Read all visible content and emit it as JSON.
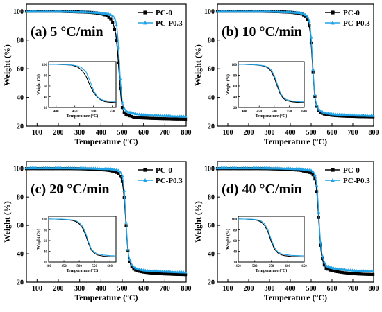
{
  "figure": {
    "legend": {
      "series0": "PC-0",
      "series1": "PC-P0.3"
    },
    "colors": {
      "series0": "#000000",
      "series1": "#1fa3e6"
    }
  },
  "chart_data": [
    {
      "type": "line",
      "title": "(a) 5 °C/min",
      "xlabel": "Temperature (°C)",
      "ylabel": "Weight (%)",
      "xlim": [
        50,
        800
      ],
      "ylim": [
        20,
        105
      ],
      "xticks": [
        100,
        200,
        300,
        400,
        500,
        600,
        700,
        800
      ],
      "yticks": [
        20,
        40,
        60,
        80,
        100
      ],
      "legend_position": "top-right",
      "series": [
        {
          "name": "PC-0",
          "color": "#000000",
          "marker": "square",
          "x": [
            50,
            100,
            150,
            200,
            250,
            300,
            350,
            400,
            430,
            450,
            460,
            470,
            475,
            480,
            485,
            490,
            495,
            500,
            510,
            520,
            540,
            560,
            600,
            650,
            700,
            750,
            800
          ],
          "y": [
            100,
            100,
            100,
            100,
            99.8,
            99.6,
            99.3,
            98.5,
            97,
            94,
            90,
            84,
            77,
            68,
            58,
            48,
            39,
            33,
            29,
            28,
            27,
            26,
            25.7,
            25.4,
            25.2,
            25,
            24.9
          ]
        },
        {
          "name": "PC-P0.3",
          "color": "#1fa3e6",
          "marker": "triangle",
          "x": [
            50,
            100,
            150,
            200,
            250,
            300,
            350,
            400,
            430,
            450,
            460,
            470,
            475,
            480,
            485,
            490,
            495,
            500,
            510,
            520,
            540,
            560,
            600,
            650,
            700,
            750,
            800
          ],
          "y": [
            100,
            100,
            100,
            100,
            99.9,
            99.7,
            99.5,
            99,
            98.3,
            97.5,
            96.5,
            93,
            89,
            80,
            68,
            55,
            44,
            37,
            32,
            30.5,
            29.5,
            28.7,
            28,
            27.6,
            27.3,
            27,
            26.8
          ]
        }
      ],
      "inset": {
        "xlabel": "Temperature (°C)",
        "ylabel": "Weight (%)",
        "xlim": [
          380,
          560
        ],
        "ylim": [
          20,
          105
        ],
        "xticks": [
          400,
          450,
          500,
          550
        ],
        "yticks": [
          20,
          40,
          60,
          80,
          100
        ],
        "series": [
          {
            "name": "PC-0",
            "x": [
              380,
              400,
              420,
              440,
              450,
              460,
              470,
              480,
              490,
              500,
              510,
              520,
              530,
              540,
              550,
              560
            ],
            "y": [
              100,
              99.8,
              99.4,
              98.5,
              97,
              94,
              88,
              78,
              62,
              48,
              39,
              34,
              31,
              30,
              29.5,
              29
            ]
          },
          {
            "name": "PC-P0.3",
            "x": [
              380,
              400,
              420,
              440,
              450,
              460,
              470,
              480,
              490,
              500,
              510,
              520,
              530,
              540,
              550,
              560
            ],
            "y": [
              100,
              99.9,
              99.6,
              99,
              98,
              96.5,
              93,
              86,
              70,
              52,
              40,
              35,
              33,
              32,
              31.5,
              31
            ]
          }
        ]
      }
    },
    {
      "type": "line",
      "title": "(b) 10 °C/min",
      "xlabel": "Temperature (°C)",
      "ylabel": "Weight (%)",
      "xlim": [
        50,
        800
      ],
      "ylim": [
        20,
        105
      ],
      "xticks": [
        100,
        200,
        300,
        400,
        500,
        600,
        700,
        800
      ],
      "yticks": [
        20,
        40,
        60,
        80,
        100
      ],
      "legend_position": "top-right",
      "series": [
        {
          "name": "PC-0",
          "color": "#000000",
          "marker": "square",
          "x": [
            50,
            100,
            150,
            200,
            250,
            300,
            350,
            400,
            450,
            470,
            480,
            490,
            495,
            500,
            505,
            510,
            515,
            520,
            530,
            540,
            560,
            600,
            650,
            700,
            750,
            800
          ],
          "y": [
            100,
            100,
            100,
            100,
            100,
            99.9,
            99.7,
            99.4,
            98.5,
            97,
            95,
            91,
            86,
            78,
            67,
            55,
            45,
            38,
            32,
            30,
            28.5,
            27.5,
            27,
            26.8,
            26.6,
            26.5
          ]
        },
        {
          "name": "PC-P0.3",
          "color": "#1fa3e6",
          "marker": "triangle",
          "x": [
            50,
            100,
            150,
            200,
            250,
            300,
            350,
            400,
            450,
            470,
            480,
            490,
            495,
            500,
            505,
            510,
            515,
            520,
            530,
            540,
            560,
            600,
            650,
            700,
            750,
            800
          ],
          "y": [
            100,
            100,
            100,
            100,
            100,
            100,
            99.8,
            99.6,
            99,
            98,
            96.8,
            94,
            90,
            82,
            70,
            57,
            46,
            39,
            33,
            31,
            29.5,
            28.5,
            28,
            27.7,
            27.5,
            27.3
          ]
        }
      ],
      "inset": {
        "xlabel": "Temperature (°C)",
        "ylabel": "Weight (%)",
        "xlim": [
          380,
          600
        ],
        "ylim": [
          20,
          105
        ],
        "xticks": [
          400,
          450,
          500,
          550,
          600
        ],
        "yticks": [
          20,
          40,
          60,
          80,
          100
        ],
        "series": [
          {
            "name": "PC-0",
            "x": [
              380,
              400,
              420,
              440,
              460,
              470,
              480,
              490,
              500,
              510,
              520,
              530,
              540,
              560,
              580,
              600
            ],
            "y": [
              100,
              99.8,
              99.5,
              99,
              97.5,
              96,
              93,
              87,
              76,
              60,
              45,
              37,
              33,
              30.5,
              29.5,
              29
            ]
          },
          {
            "name": "PC-P0.3",
            "x": [
              380,
              400,
              420,
              440,
              460,
              470,
              480,
              490,
              500,
              510,
              520,
              530,
              540,
              560,
              580,
              600
            ],
            "y": [
              100,
              99.9,
              99.6,
              99.1,
              98,
              97,
              94.5,
              90,
              80,
              64,
              48,
              39,
              35,
              32,
              31,
              30.5
            ]
          }
        ]
      }
    },
    {
      "type": "line",
      "title": "(c) 20 °C/min",
      "xlabel": "Temperature (°C)",
      "ylabel": "Weight (%)",
      "xlim": [
        50,
        800
      ],
      "ylim": [
        20,
        105
      ],
      "xticks": [
        100,
        200,
        300,
        400,
        500,
        600,
        700,
        800
      ],
      "yticks": [
        20,
        40,
        60,
        80,
        100
      ],
      "legend_position": "top-right",
      "series": [
        {
          "name": "PC-0",
          "color": "#000000",
          "marker": "square",
          "x": [
            50,
            100,
            150,
            200,
            250,
            300,
            350,
            400,
            450,
            480,
            490,
            500,
            505,
            510,
            515,
            520,
            525,
            530,
            540,
            550,
            570,
            600,
            650,
            700,
            750,
            800
          ],
          "y": [
            100,
            100,
            100,
            100,
            100,
            99.9,
            99.7,
            99.4,
            98.5,
            97,
            95,
            91,
            86,
            78,
            67,
            55,
            45,
            38,
            32,
            29.5,
            28,
            27,
            26.2,
            25.8,
            25.5,
            25.3
          ]
        },
        {
          "name": "PC-P0.3",
          "color": "#1fa3e6",
          "marker": "triangle",
          "x": [
            50,
            100,
            150,
            200,
            250,
            300,
            350,
            400,
            450,
            480,
            490,
            500,
            505,
            510,
            515,
            520,
            525,
            530,
            540,
            550,
            570,
            600,
            650,
            700,
            750,
            800
          ],
          "y": [
            100.5,
            100.5,
            100.5,
            100.5,
            100.5,
            100.4,
            100.3,
            100.1,
            99.8,
            99,
            97.8,
            95,
            91,
            83,
            70,
            57,
            46,
            39,
            33.5,
            31,
            29.5,
            28.5,
            28,
            27.6,
            27.3,
            27
          ]
        }
      ],
      "inset": {
        "xlabel": "Temperature (°C)",
        "ylabel": "Weight (%)",
        "xlim": [
          400,
          620
        ],
        "ylim": [
          20,
          105
        ],
        "xticks": [
          400,
          450,
          500,
          550,
          600
        ],
        "yticks": [
          20,
          40,
          60,
          80,
          100
        ],
        "series": [
          {
            "name": "PC-0",
            "x": [
              400,
              420,
              440,
              460,
              480,
              490,
              500,
              510,
              520,
              530,
              540,
              550,
              560,
              580,
              600,
              620
            ],
            "y": [
              100,
              99.8,
              99.4,
              98.7,
              97,
              95,
              91,
              84,
              72,
              55,
              42,
              36,
              33,
              31,
              30,
              29.5
            ]
          },
          {
            "name": "PC-P0.3",
            "x": [
              400,
              420,
              440,
              460,
              480,
              490,
              500,
              510,
              520,
              530,
              540,
              550,
              560,
              580,
              600,
              620
            ],
            "y": [
              100,
              99.9,
              99.7,
              99.2,
              98,
              96.5,
              93,
              87,
              76,
              58,
              44,
              38,
              35,
              33,
              32,
              31.5
            ]
          }
        ]
      }
    },
    {
      "type": "line",
      "title": "(d) 40 °C/min",
      "xlabel": "Temperature (°C)",
      "ylabel": "Weight (%)",
      "xlim": [
        50,
        800
      ],
      "ylim": [
        20,
        105
      ],
      "xticks": [
        100,
        200,
        300,
        400,
        500,
        600,
        700,
        800
      ],
      "yticks": [
        20,
        40,
        60,
        80,
        100
      ],
      "legend_position": "top-right",
      "series": [
        {
          "name": "PC-0",
          "color": "#000000",
          "marker": "square",
          "x": [
            50,
            100,
            150,
            200,
            250,
            300,
            350,
            400,
            450,
            500,
            510,
            520,
            525,
            530,
            535,
            540,
            545,
            550,
            560,
            570,
            590,
            620,
            650,
            700,
            750,
            800
          ],
          "y": [
            100,
            100,
            100,
            100,
            100,
            99.9,
            99.7,
            99.4,
            98.8,
            97,
            95.5,
            92,
            87,
            79,
            68,
            56,
            46,
            39,
            33,
            30,
            28.5,
            27.5,
            26.8,
            26,
            25.6,
            25.4
          ]
        },
        {
          "name": "PC-P0.3",
          "color": "#1fa3e6",
          "marker": "triangle",
          "x": [
            50,
            100,
            150,
            200,
            250,
            300,
            350,
            400,
            450,
            500,
            510,
            520,
            525,
            530,
            535,
            540,
            545,
            550,
            560,
            570,
            590,
            620,
            650,
            700,
            750,
            800
          ],
          "y": [
            100.5,
            100.5,
            100.5,
            100.5,
            100.5,
            100.4,
            100.3,
            100.1,
            99.8,
            98.8,
            97.8,
            95,
            91,
            84,
            72,
            59,
            48,
            41,
            35,
            32,
            30.5,
            29.5,
            29,
            28.4,
            28,
            27.7
          ]
        }
      ],
      "inset": {
        "xlabel": "Temperature (°C)",
        "ylabel": "Weight (%)",
        "xlim": [
          450,
          650
        ],
        "ylim": [
          20,
          105
        ],
        "xticks": [
          450,
          500,
          550,
          600,
          650
        ],
        "yticks": [
          20,
          40,
          60,
          80,
          100
        ],
        "series": [
          {
            "name": "PC-0",
            "x": [
              450,
              470,
              490,
              500,
              510,
              520,
              530,
              540,
              550,
              560,
              570,
              580,
              590,
              610,
              630,
              650
            ],
            "y": [
              100,
              99.8,
              99.3,
              98.6,
              97,
              94,
              88,
              76,
              58,
              44,
              37,
              33.5,
              32,
              30.5,
              30,
              29.5
            ]
          },
          {
            "name": "PC-P0.3",
            "x": [
              450,
              470,
              490,
              500,
              510,
              520,
              530,
              540,
              550,
              560,
              570,
              580,
              590,
              610,
              630,
              650
            ],
            "y": [
              100,
              99.9,
              99.6,
              99.2,
              98.2,
              96,
              91,
              80,
              62,
              47,
              39,
              35.5,
              34,
              32.5,
              32,
              31.5
            ]
          }
        ]
      }
    }
  ]
}
